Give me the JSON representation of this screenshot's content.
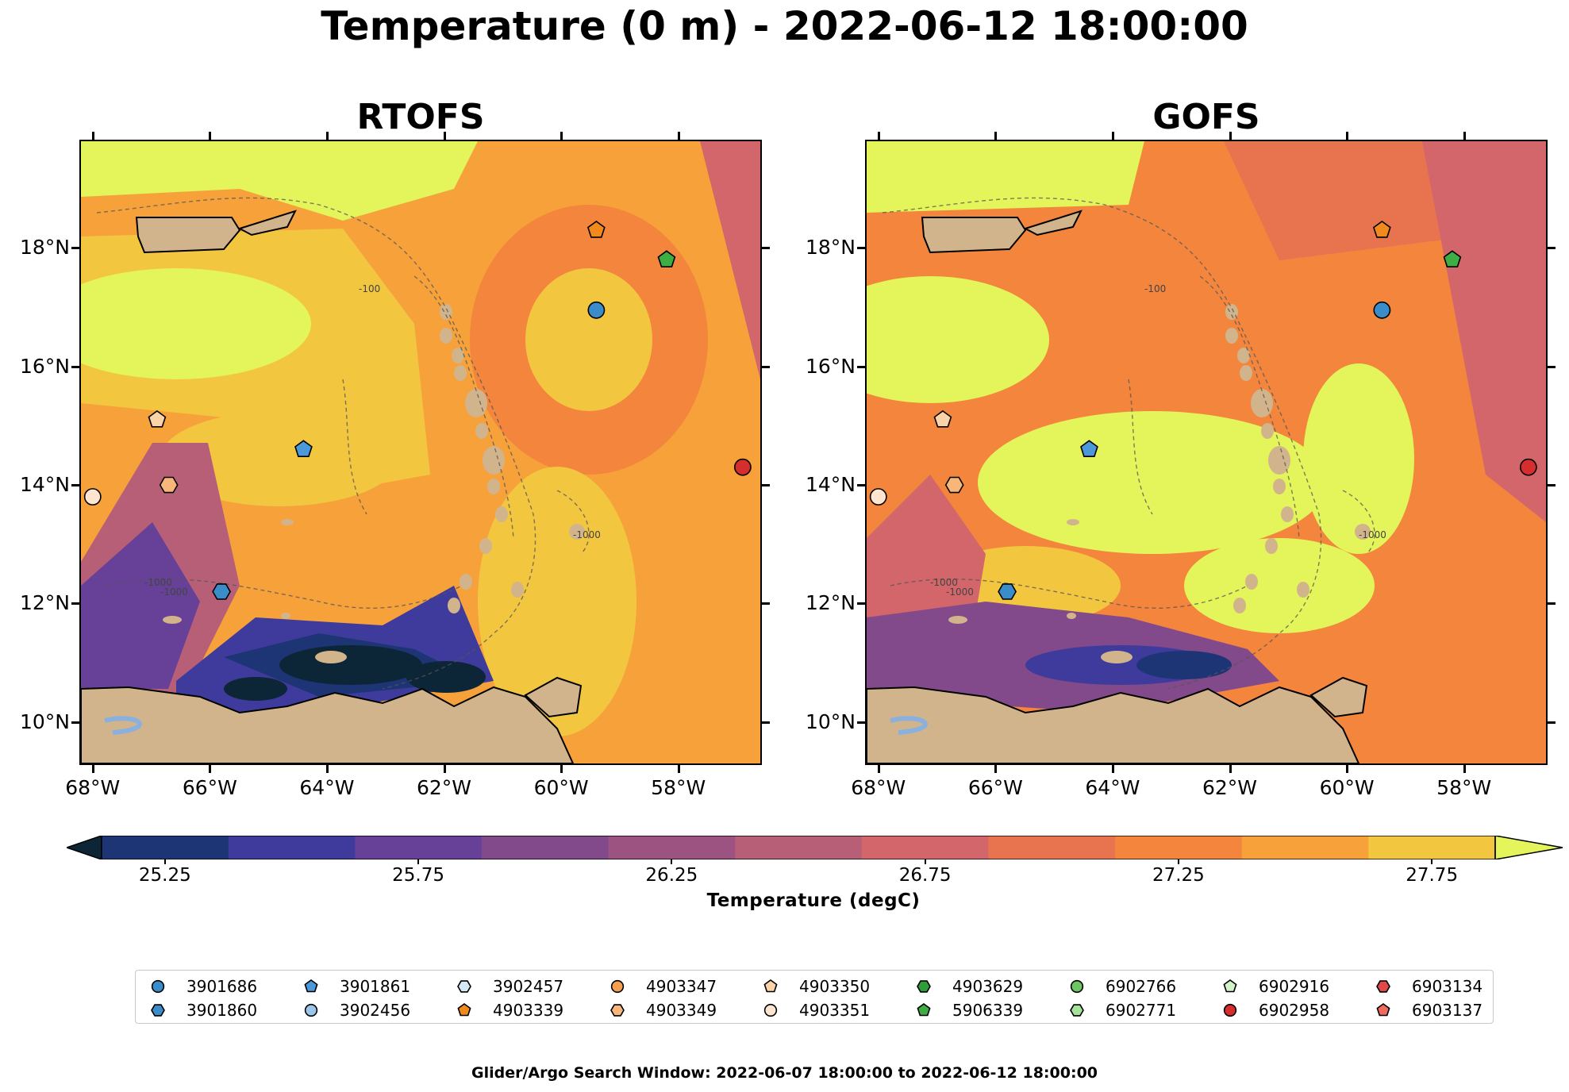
{
  "figure": {
    "title": "Temperature (0 m) - 2022-06-12 18:00:00",
    "footer": "Glider/Argo Search Window: 2022-06-07 18:00:00 to 2022-06-12 18:00:00"
  },
  "panels": [
    {
      "title": "RTOFS"
    },
    {
      "title": "GOFS"
    }
  ],
  "axes": {
    "lat_labels": [
      "18°N",
      "16°N",
      "14°N",
      "12°N",
      "10°N"
    ],
    "lon_labels": [
      "68°W",
      "66°W",
      "64°W",
      "62°W",
      "60°W",
      "58°W"
    ],
    "lat_values": [
      18,
      16,
      14,
      12,
      10
    ],
    "lon_values": [
      -68,
      -66,
      -64,
      -62,
      -60,
      -58
    ],
    "lat_range": [
      9.3,
      19.8
    ],
    "lon_range": [
      -68.2,
      -56.6
    ]
  },
  "contour_labels": {
    "depth_1000": "-1000",
    "depth_100": "-100"
  },
  "colorbar": {
    "label": "Temperature (degC)",
    "tick_labels": [
      "25.25",
      "25.75",
      "26.25",
      "26.75",
      "27.25",
      "27.75"
    ],
    "tick_values": [
      25.25,
      25.75,
      26.25,
      26.75,
      27.25,
      27.75
    ],
    "range": [
      25.125,
      27.875
    ],
    "colors": [
      "#0c2637",
      "#1d3475",
      "#3e3b9c",
      "#664197",
      "#82498b",
      "#9c5382",
      "#b85f78",
      "#d2666a",
      "#e8744f",
      "#f3853d",
      "#f7a13a",
      "#f3c640",
      "#e3f55a"
    ],
    "extend": "both"
  },
  "markers": [
    {
      "id": "3901686",
      "shape": "circle",
      "color": "#3a8dc9",
      "lon": -59.4,
      "lat": 16.95
    },
    {
      "id": "3901860",
      "shape": "hexagon",
      "color": "#3a8dc9",
      "lon": -65.8,
      "lat": 12.2
    },
    {
      "id": "3901861",
      "shape": "pentagon",
      "color": "#4d98d8",
      "lon": -64.4,
      "lat": 14.6
    },
    {
      "id": "3902456",
      "shape": "circle",
      "color": "#9cc7ea",
      "lon": null,
      "lat": null
    },
    {
      "id": "3902457",
      "shape": "hexagon",
      "color": "#d5e8f6",
      "lon": null,
      "lat": null
    },
    {
      "id": "4903339",
      "shape": "pentagon",
      "color": "#f08a1f",
      "lon": -59.4,
      "lat": 18.3
    },
    {
      "id": "4903347",
      "shape": "circle",
      "color": "#f5a050",
      "lon": null,
      "lat": null
    },
    {
      "id": "4903349",
      "shape": "hexagon",
      "color": "#f8b67a",
      "lon": -66.7,
      "lat": 14.0
    },
    {
      "id": "4903350",
      "shape": "pentagon",
      "color": "#fad3a8",
      "lon": -66.9,
      "lat": 15.1
    },
    {
      "id": "4903351",
      "shape": "circle",
      "color": "#fde5d0",
      "lon": -68.0,
      "lat": 13.8
    },
    {
      "id": "4903629",
      "shape": "hexagon",
      "color": "#2f9e3a",
      "lon": null,
      "lat": null
    },
    {
      "id": "5906339",
      "shape": "pentagon",
      "color": "#3dad44",
      "lon": -58.2,
      "lat": 17.8
    },
    {
      "id": "6902766",
      "shape": "circle",
      "color": "#6cc763",
      "lon": null,
      "lat": null
    },
    {
      "id": "6902771",
      "shape": "hexagon",
      "color": "#a6e29a",
      "lon": null,
      "lat": null
    },
    {
      "id": "6902916",
      "shape": "pentagon",
      "color": "#d2f2c8",
      "lon": null,
      "lat": null
    },
    {
      "id": "6902958",
      "shape": "circle",
      "color": "#d62e2e",
      "lon": -56.9,
      "lat": 14.3
    },
    {
      "id": "6903134",
      "shape": "hexagon",
      "color": "#e34848",
      "lon": null,
      "lat": null
    },
    {
      "id": "6903137",
      "shape": "pentagon",
      "color": "#f06a5e",
      "lon": null,
      "lat": null
    }
  ]
}
